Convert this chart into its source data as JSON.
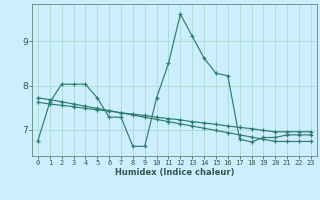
{
  "xlabel": "Humidex (Indice chaleur)",
  "bg_color": "#cceeff",
  "grid_color": "#aaddcc",
  "line_color": "#2d7d6e",
  "xlim": [
    -0.5,
    23.5
  ],
  "ylim": [
    6.4,
    9.85
  ],
  "yticks": [
    7,
    8,
    9
  ],
  "xticks": [
    0,
    1,
    2,
    3,
    4,
    5,
    6,
    7,
    8,
    9,
    10,
    11,
    12,
    13,
    14,
    15,
    16,
    17,
    18,
    19,
    20,
    21,
    22,
    23
  ],
  "series1_y": [
    6.75,
    7.62,
    8.03,
    8.03,
    8.03,
    7.72,
    7.28,
    7.28,
    6.62,
    6.62,
    7.72,
    8.5,
    9.62,
    9.12,
    8.62,
    8.28,
    8.22,
    6.78,
    6.72,
    6.82,
    6.82,
    6.88,
    6.88,
    6.88
  ],
  "series2_y": [
    7.72,
    7.68,
    7.63,
    7.58,
    7.53,
    7.48,
    7.43,
    7.38,
    7.33,
    7.28,
    7.23,
    7.18,
    7.13,
    7.08,
    7.03,
    6.98,
    6.93,
    6.88,
    6.83,
    6.78,
    6.73,
    6.73,
    6.73,
    6.73
  ],
  "series3_y": [
    7.62,
    7.58,
    7.55,
    7.52,
    7.48,
    7.45,
    7.42,
    7.38,
    7.35,
    7.32,
    7.28,
    7.25,
    7.22,
    7.18,
    7.15,
    7.12,
    7.08,
    7.05,
    7.02,
    6.98,
    6.95,
    6.95,
    6.95,
    6.95
  ]
}
